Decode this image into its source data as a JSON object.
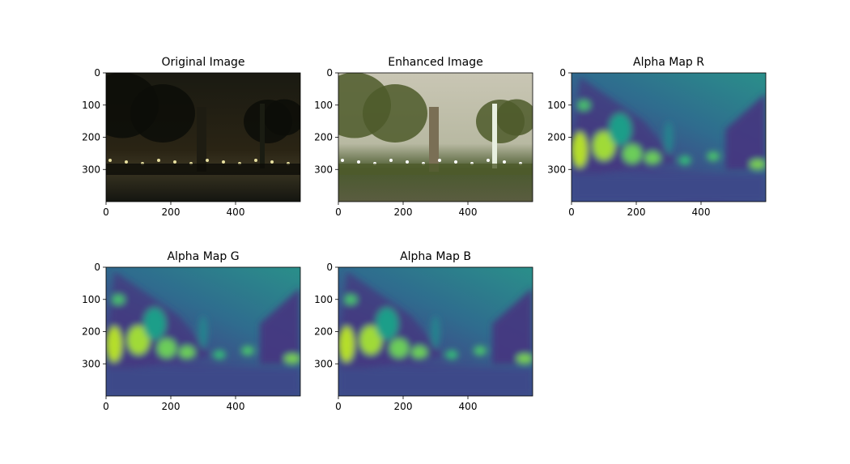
{
  "chart_data": [
    {
      "type": "image",
      "title": "Original Image",
      "xlim": [
        0,
        600
      ],
      "ylim": [
        400,
        0
      ],
      "xticks": [
        0,
        200,
        400
      ],
      "yticks": [
        0,
        100,
        200,
        300
      ]
    },
    {
      "type": "image",
      "title": "Enhanced Image",
      "xlim": [
        0,
        600
      ],
      "ylim": [
        400,
        0
      ],
      "xticks": [
        0,
        200,
        400
      ],
      "yticks": [
        0,
        100,
        200,
        300
      ]
    },
    {
      "type": "image",
      "title": "Alpha Map R",
      "xlim": [
        0,
        600
      ],
      "ylim": [
        400,
        0
      ],
      "xticks": [
        0,
        200,
        400
      ],
      "yticks": [
        0,
        100,
        200,
        300
      ]
    },
    {
      "type": "image",
      "title": "Alpha Map G",
      "xlim": [
        0,
        600
      ],
      "ylim": [
        400,
        0
      ],
      "xticks": [
        0,
        200,
        400
      ],
      "yticks": [
        0,
        100,
        200,
        300
      ]
    },
    {
      "type": "image",
      "title": "Alpha Map B",
      "xlim": [
        0,
        600
      ],
      "ylim": [
        400,
        0
      ],
      "xticks": [
        0,
        200,
        400
      ],
      "yticks": [
        0,
        100,
        200,
        300
      ]
    }
  ]
}
